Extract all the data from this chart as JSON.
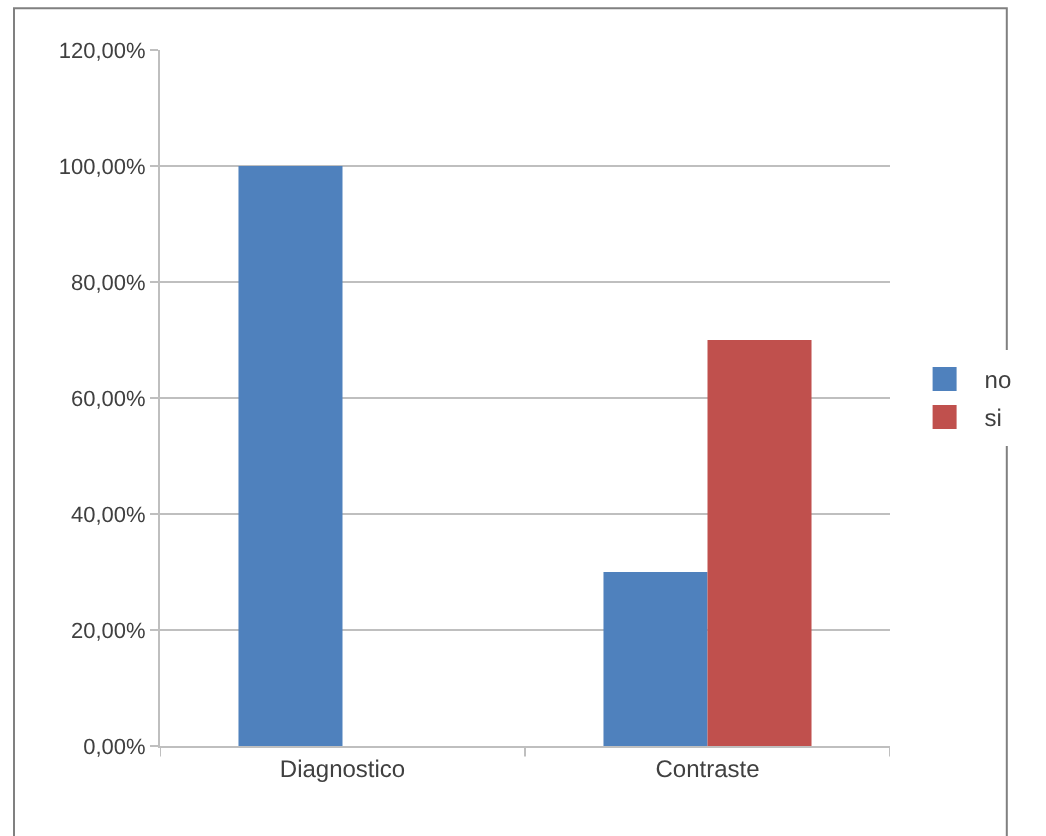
{
  "chart_data": {
    "type": "bar",
    "categories": [
      "Diagnostico",
      "Contraste"
    ],
    "series": [
      {
        "name": "no",
        "color": "#4f81bd",
        "values": [
          100,
          30
        ]
      },
      {
        "name": "si",
        "color": "#c0504d",
        "values": [
          0,
          70
        ]
      }
    ],
    "ylim": [
      0,
      120
    ],
    "yticks": [
      {
        "value": 0,
        "label": "0,00%"
      },
      {
        "value": 20,
        "label": "20,00%"
      },
      {
        "value": 40,
        "label": "40,00%"
      },
      {
        "value": 60,
        "label": "60,00%"
      },
      {
        "value": 80,
        "label": "80,00%"
      },
      {
        "value": 100,
        "label": "100,00%"
      },
      {
        "value": 120,
        "label": "120,00%"
      }
    ],
    "grid": "y",
    "legend": "right"
  }
}
